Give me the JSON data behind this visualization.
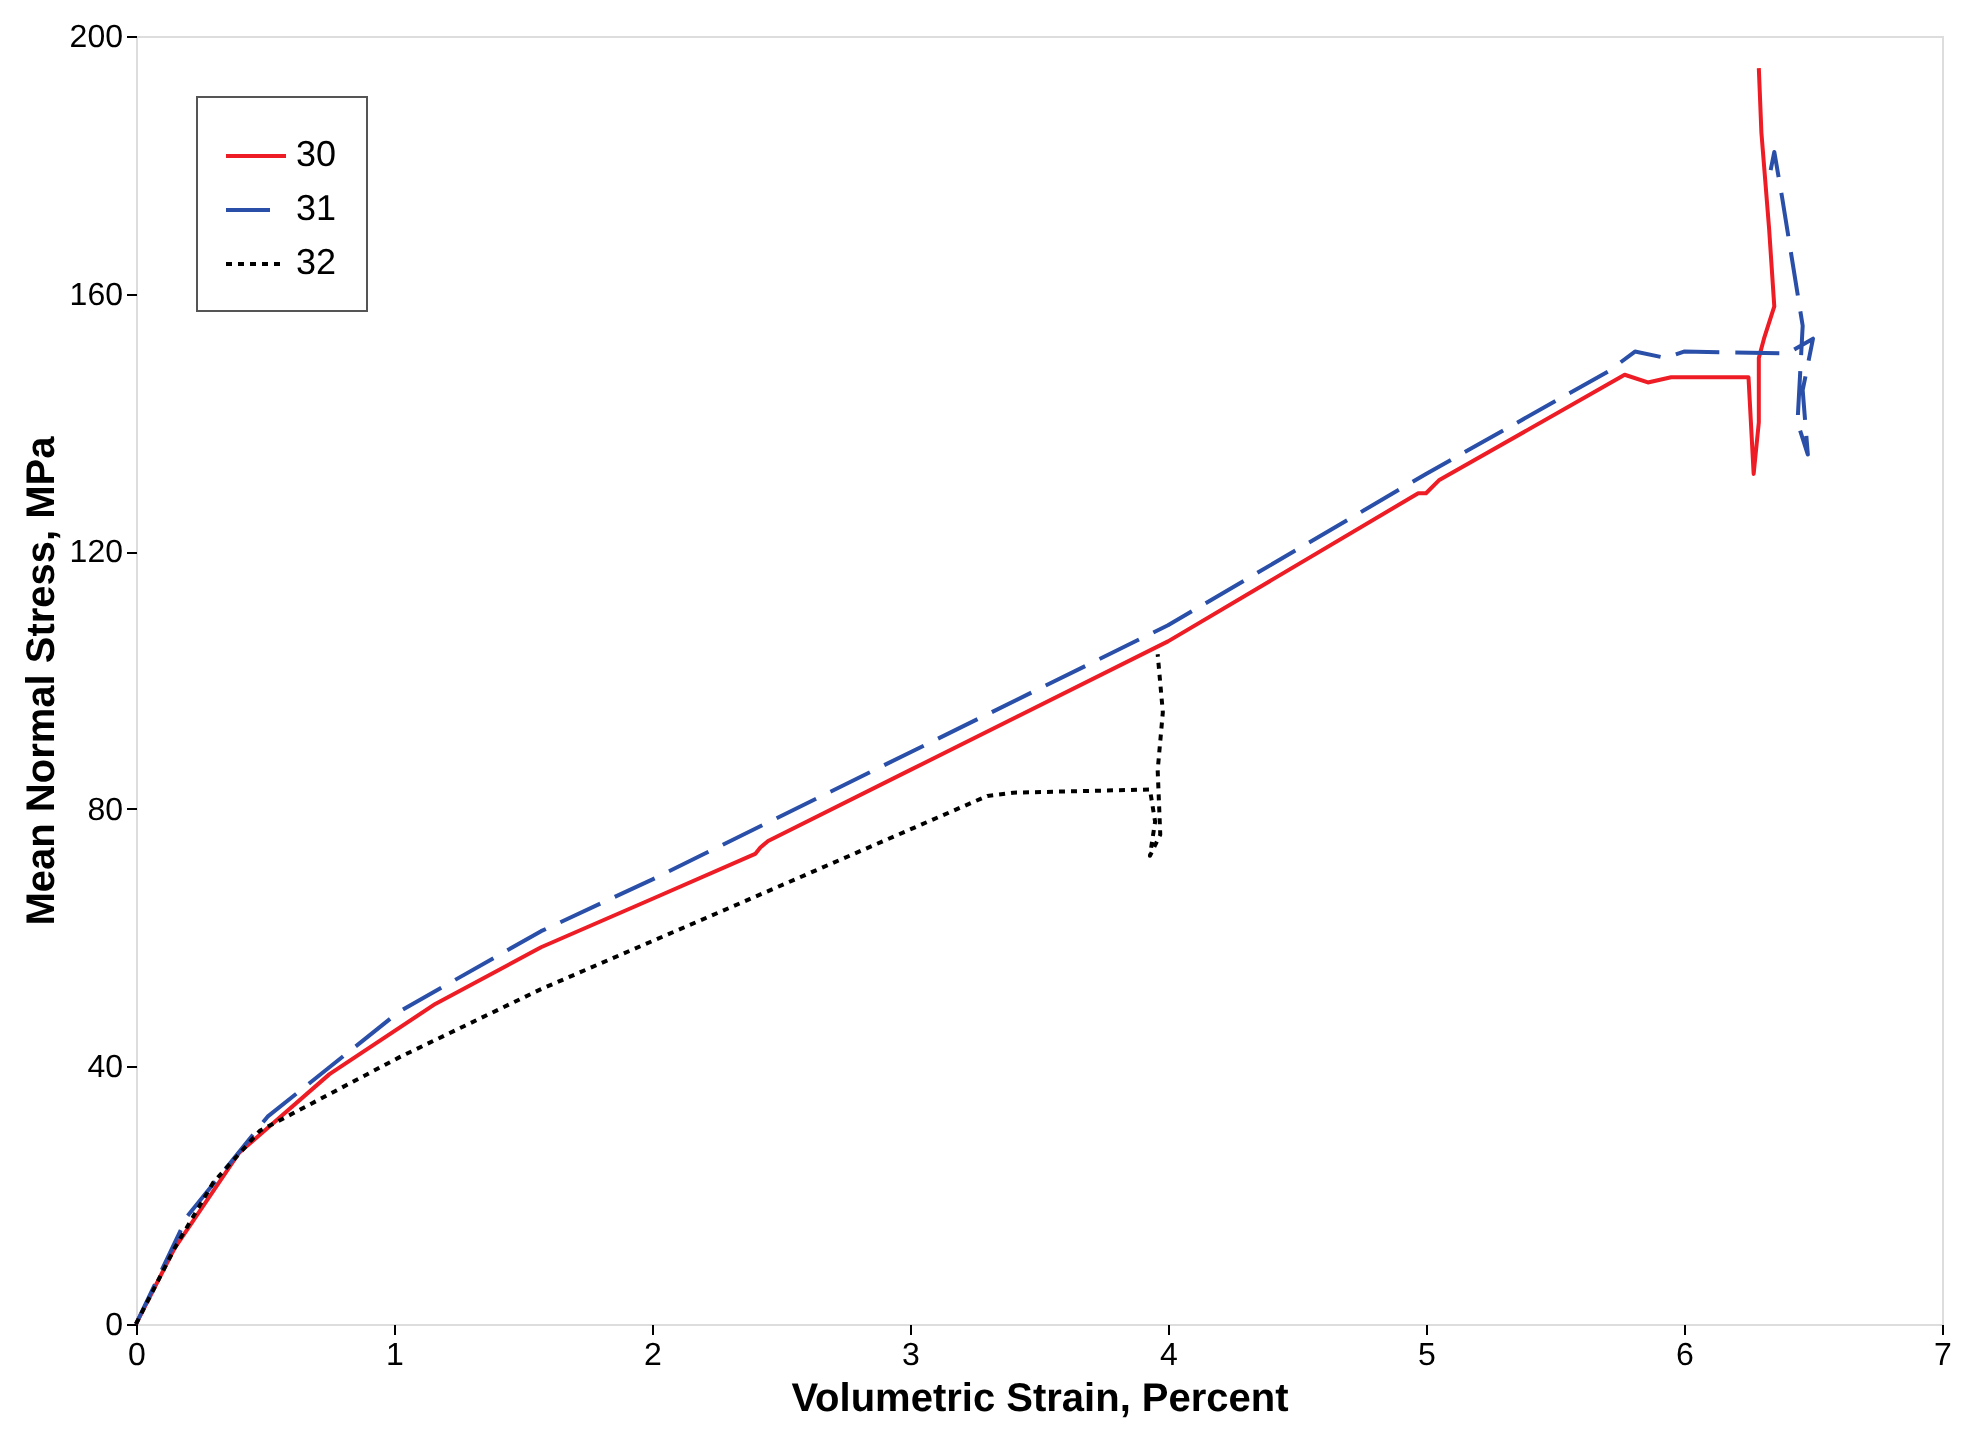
{
  "chart_data": {
    "type": "line",
    "xlabel": "Volumetric Strain, Percent",
    "ylabel": "Mean Normal Stress, MPa",
    "xlim": [
      0,
      7
    ],
    "xticks": [
      0,
      1,
      2,
      3,
      4,
      5,
      6,
      7
    ],
    "ylim": [
      0,
      200
    ],
    "yticks": [
      0,
      40,
      80,
      120,
      160,
      200
    ],
    "grid": false,
    "legend": "top left",
    "marker": "none",
    "series": [
      {
        "name": "30",
        "color": "#ee1c24",
        "line_style": "solid",
        "x": [
          0,
          0.15,
          0.4,
          0.75,
          1.16,
          1.57,
          2.0,
          2.4,
          2.42,
          2.45,
          3.0,
          4.0,
          4.97,
          5.0,
          5.05,
          5.77,
          5.86,
          5.95,
          6.22,
          6.25,
          6.27,
          6.29,
          6.29,
          6.31,
          6.35,
          6.33,
          6.3,
          6.29
        ],
        "values": [
          0,
          11.8,
          26.6,
          38.8,
          49.7,
          58.5,
          66,
          73,
          74,
          75,
          86,
          106,
          129,
          129,
          131,
          147.4,
          146.2,
          147,
          147,
          147,
          132,
          140,
          150,
          153,
          158,
          170,
          185,
          195
        ]
      },
      {
        "name": "31",
        "color": "#2a4fa8",
        "line_style": "dashed",
        "x": [
          0,
          0.2,
          0.51,
          1.02,
          1.57,
          2.0,
          4.0,
          5.0,
          5.71,
          5.81,
          5.93,
          6.0,
          6.4,
          6.5,
          6.46,
          6.48,
          6.44,
          6.46,
          6.42,
          6.38,
          6.35,
          6.33
        ],
        "values": [
          0,
          16.8,
          32.2,
          48.5,
          61,
          69,
          108.5,
          132,
          148,
          151,
          150,
          151,
          150.7,
          153,
          145,
          135,
          140,
          155,
          165,
          175,
          182,
          178
        ]
      },
      {
        "name": "32",
        "color": "#000000",
        "line_style": "dotted",
        "x": [
          0,
          0.15,
          0.3,
          0.48,
          1.02,
          1.57,
          2.38,
          3.3,
          3.4,
          3.93,
          3.95,
          3.93,
          3.97,
          3.96,
          3.98,
          3.96
        ],
        "values": [
          0,
          11.8,
          22,
          30,
          41.4,
          52,
          66,
          82,
          82.5,
          83,
          78,
          72.7,
          76,
          86,
          95,
          104
        ]
      }
    ]
  }
}
